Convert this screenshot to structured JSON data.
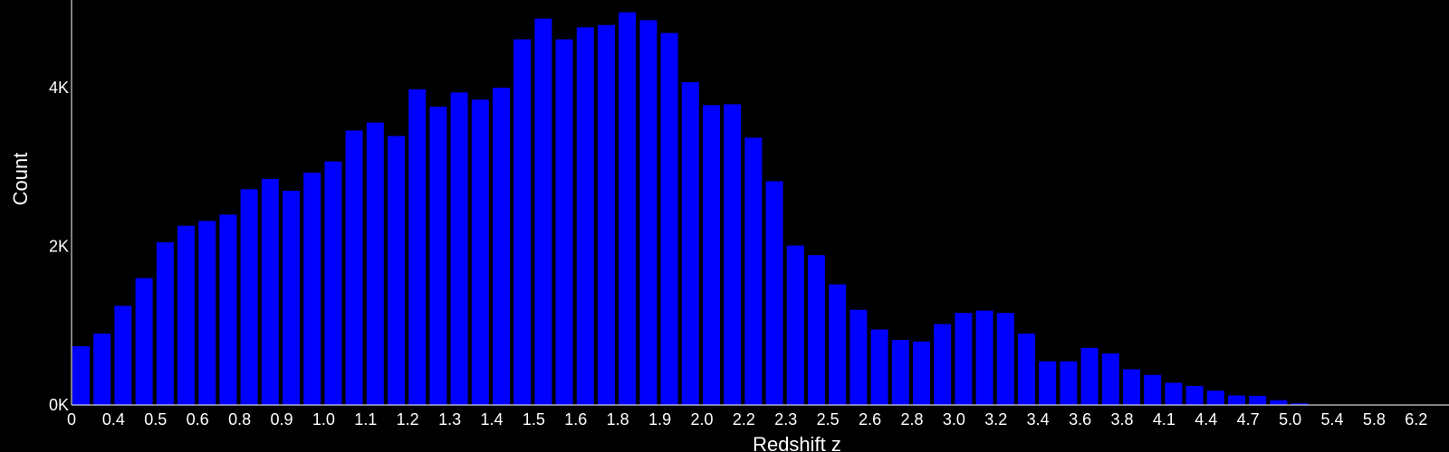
{
  "chart_data": {
    "type": "bar",
    "xlabel": "Redshift z",
    "ylabel": "Count",
    "ylim": [
      0,
      5000
    ],
    "y_ticks": [
      {
        "value": 0,
        "label": "0K"
      },
      {
        "value": 2000,
        "label": "2K"
      },
      {
        "value": 4000,
        "label": "4K"
      }
    ],
    "x_tick_labels": [
      "0",
      "0.4",
      "0.5",
      "0.6",
      "0.8",
      "0.9",
      "1.0",
      "1.1",
      "1.2",
      "1.3",
      "1.4",
      "1.5",
      "1.6",
      "1.8",
      "1.9",
      "2.0",
      "2.2",
      "2.3",
      "2.5",
      "2.6",
      "2.8",
      "3.0",
      "3.2",
      "3.4",
      "3.6",
      "3.8",
      "4.1",
      "4.4",
      "4.7",
      "5.0",
      "5.4",
      "5.8",
      "6.2"
    ],
    "bar_color": "#0000ff",
    "axis_color": "#ffffff",
    "background": "#000000",
    "grid": false,
    "values": [
      740,
      900,
      1250,
      1600,
      2050,
      2260,
      2320,
      2400,
      2720,
      2850,
      2700,
      2930,
      3070,
      3460,
      3560,
      3390,
      3980,
      3760,
      3940,
      3850,
      4000,
      4610,
      4870,
      4610,
      4760,
      4790,
      4950,
      4850,
      4690,
      4070,
      3780,
      3790,
      3370,
      2820,
      2010,
      1890,
      1520,
      1200,
      950,
      820,
      800,
      1020,
      1160,
      1190,
      1160,
      900,
      550,
      550,
      720,
      650,
      450,
      380,
      280,
      240,
      180,
      120,
      115,
      60,
      20,
      5,
      5,
      3,
      5,
      3,
      3,
      3
    ]
  }
}
